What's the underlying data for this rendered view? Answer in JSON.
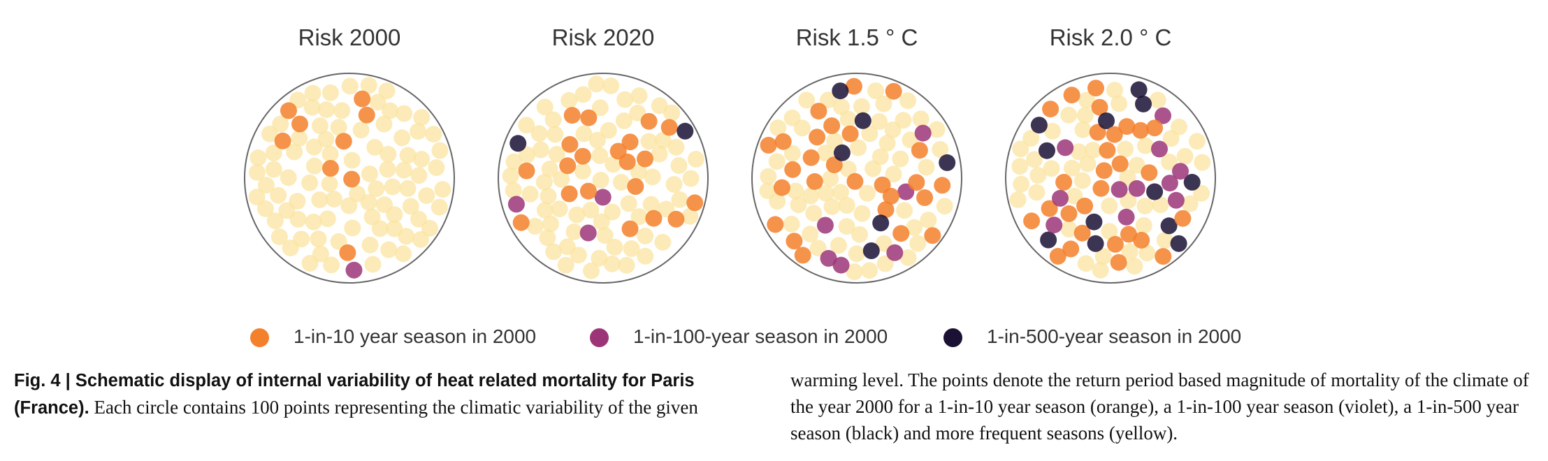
{
  "panels": [
    {
      "title": "Risk 2000",
      "orange": 9,
      "violet": 1,
      "black": 0,
      "seed": 11
    },
    {
      "title": "Risk 2020",
      "orange": 20,
      "violet": 3,
      "black": 2,
      "seed": 23
    },
    {
      "title": "Risk 1.5 ° C",
      "orange": 26,
      "violet": 6,
      "black": 6,
      "seed": 37
    },
    {
      "title": "Risk 2.0 ° C",
      "orange": 28,
      "violet": 11,
      "black": 12,
      "seed": 53
    }
  ],
  "points_per_circle": 100,
  "colors": {
    "orange": "#f4802c",
    "violet": "#9c3578",
    "black": "#1a1135",
    "yellow": "#fbe4a0",
    "outline": "#666666"
  },
  "legend": [
    {
      "label": "1-in-10 year season in 2000",
      "color": "#f4802c"
    },
    {
      "label": "1-in-100-year season in 2000",
      "color": "#9c3578"
    },
    {
      "label": "1-in-500-year season in 2000",
      "color": "#1a1135"
    }
  ],
  "caption": {
    "label": "Fig. 4 | Schematic display of internal variability of heat related mortality for Paris (France).",
    "text": "Each circle contains 100 points representing the climatic variability of the given warming level. The points denote the return period based magnitude of mortality of the climate of the year 2000 for a 1-in-10 year season (orange), a 1-in-100 year season (violet), a 1-in-500 year season (black) and more frequent seasons (yellow)."
  }
}
